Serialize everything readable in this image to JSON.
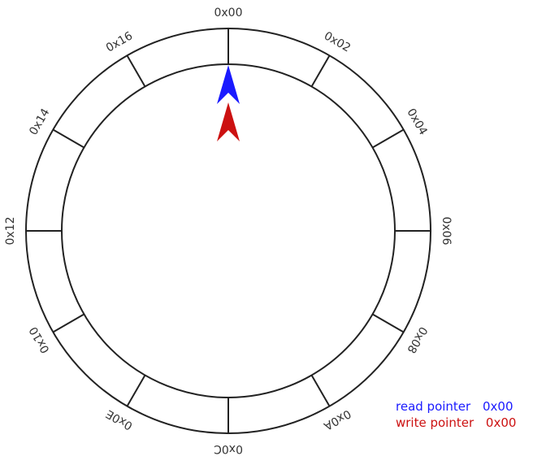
{
  "buffer": {
    "slot_labels": [
      "0x00",
      "0x02",
      "0x04",
      "0x06",
      "0x08",
      "0x0A",
      "0x0C",
      "0x0E",
      "0x10",
      "0x12",
      "0x14",
      "0x16"
    ],
    "slot_count": 12
  },
  "pointers": {
    "read": {
      "label": "read pointer",
      "value": "0x00",
      "color": "#1a1aff",
      "slot": 0
    },
    "write": {
      "label": "write pointer",
      "value": "0x00",
      "color": "#cc1111",
      "slot": 0
    }
  }
}
